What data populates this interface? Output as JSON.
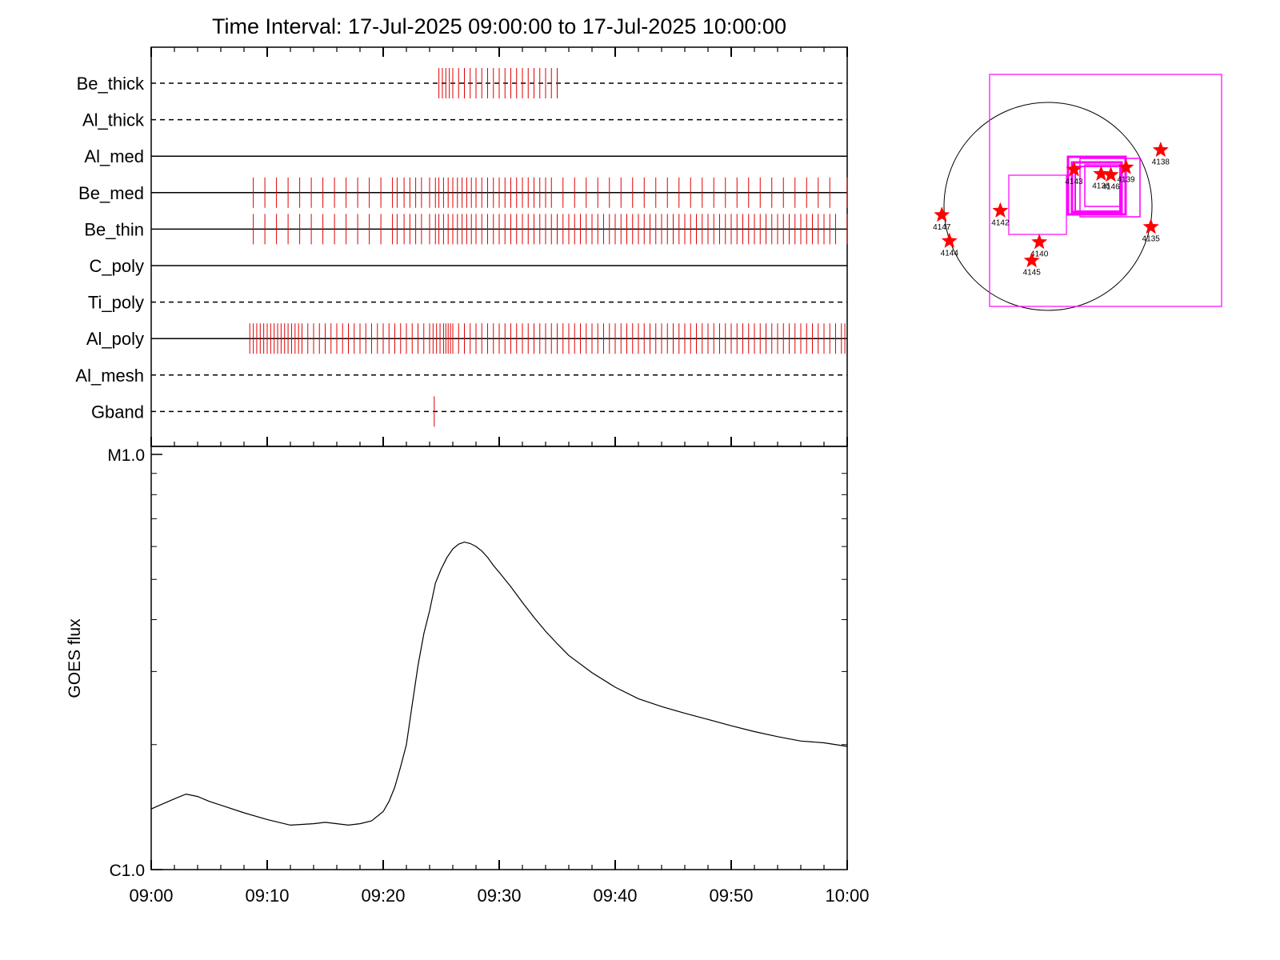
{
  "title": "Time Interval: 17-Jul-2025 09:00:00 to 17-Jul-2025 10:00:00",
  "colors": {
    "axis": "#000000",
    "exposure_tick": "#e00000",
    "region_box": "#ff00ff",
    "sun_limb": "#000000",
    "star": "#ff0000",
    "curve": "#000000"
  },
  "chart_data": [
    {
      "type": "timeline",
      "name": "filter-exposures",
      "x_range": [
        "09:00",
        "10:00"
      ],
      "x_unit": "minutes after 09:00",
      "rows": [
        {
          "label": "Be_thick",
          "line": "dashed",
          "exposures": [
            24.8,
            25.1,
            25.4,
            25.7,
            26.0,
            26.5,
            27.0,
            27.5,
            28.0,
            28.5,
            29.0,
            29.5,
            30.0,
            30.5,
            31.0,
            31.5,
            32.0,
            32.5,
            33.0,
            33.5,
            34.0,
            34.5,
            35.0
          ]
        },
        {
          "label": "Al_thick",
          "line": "dashed",
          "exposures": []
        },
        {
          "label": "Al_med",
          "line": "solid",
          "exposures": []
        },
        {
          "label": "Be_med",
          "line": "solid",
          "exposures": [
            8.8,
            9.8,
            10.8,
            11.8,
            12.8,
            13.8,
            14.8,
            15.8,
            16.8,
            17.8,
            18.8,
            19.8,
            20.8,
            21.2,
            21.8,
            22.3,
            22.8,
            23.3,
            24.0,
            24.5,
            24.8,
            25.2,
            25.6,
            26.0,
            26.4,
            26.8,
            27.2,
            27.6,
            28.0,
            28.5,
            29.0,
            29.5,
            30.0,
            30.5,
            31.0,
            31.5,
            32.0,
            32.5,
            33.0,
            33.5,
            34.0,
            34.5,
            35.5,
            36.5,
            37.5,
            38.5,
            39.5,
            40.5,
            41.5,
            42.5,
            43.5,
            44.5,
            45.5,
            46.5,
            47.5,
            48.5,
            49.5,
            50.5,
            51.5,
            52.5,
            53.5,
            54.5,
            55.5,
            56.5,
            57.5,
            58.5,
            60.0
          ]
        },
        {
          "label": "Be_thin",
          "line": "solid",
          "exposures": [
            8.8,
            9.8,
            10.8,
            11.8,
            12.8,
            13.8,
            14.8,
            15.8,
            16.8,
            17.8,
            18.8,
            19.8,
            20.8,
            21.2,
            21.8,
            22.3,
            22.8,
            23.3,
            24.0,
            24.5,
            24.8,
            25.2,
            25.6,
            26.0,
            26.4,
            26.8,
            27.2,
            27.6,
            28.0,
            28.5,
            29.0,
            29.5,
            30.0,
            30.5,
            31.0,
            31.5,
            32.0,
            32.5,
            33.0,
            33.5,
            34.0,
            34.5,
            35.0,
            35.5,
            36.0,
            36.5,
            37.0,
            37.5,
            38.0,
            38.5,
            39.0,
            39.5,
            40.0,
            40.5,
            41.0,
            41.5,
            42.0,
            42.5,
            43.0,
            43.5,
            44.0,
            44.5,
            45.0,
            45.5,
            46.0,
            46.5,
            47.0,
            47.5,
            48.0,
            48.5,
            49.0,
            49.5,
            50.0,
            50.5,
            51.0,
            51.5,
            52.0,
            52.5,
            53.0,
            53.5,
            54.0,
            54.5,
            55.0,
            55.5,
            56.0,
            56.5,
            57.0,
            57.5,
            58.0,
            58.5,
            59.0,
            60.0
          ]
        },
        {
          "label": "C_poly",
          "line": "solid",
          "exposures": []
        },
        {
          "label": "Ti_poly",
          "line": "dashed",
          "exposures": []
        },
        {
          "label": "Al_poly",
          "line": "solid",
          "exposures": [
            8.5,
            8.8,
            9.1,
            9.4,
            9.7,
            10.0,
            10.3,
            10.6,
            10.9,
            11.2,
            11.5,
            11.8,
            12.1,
            12.4,
            12.7,
            13.0,
            13.5,
            14.0,
            14.5,
            15.0,
            15.5,
            16.0,
            16.5,
            17.0,
            17.5,
            18.0,
            18.5,
            19.0,
            19.5,
            20.0,
            20.5,
            21.0,
            21.5,
            22.0,
            22.5,
            23.0,
            23.5,
            24.0,
            24.3,
            24.6,
            24.9,
            25.2,
            25.4,
            25.6,
            25.8,
            26.0,
            26.5,
            27.0,
            27.5,
            28.0,
            28.5,
            29.0,
            29.5,
            30.0,
            30.5,
            31.0,
            31.5,
            32.0,
            32.5,
            33.0,
            33.5,
            34.0,
            34.5,
            35.0,
            35.5,
            36.0,
            36.5,
            37.0,
            37.5,
            38.0,
            38.5,
            39.0,
            39.5,
            40.0,
            40.5,
            41.0,
            41.5,
            42.0,
            42.5,
            43.0,
            43.5,
            44.0,
            44.5,
            45.0,
            45.5,
            46.0,
            46.5,
            47.0,
            47.5,
            48.0,
            48.5,
            49.0,
            49.5,
            50.0,
            50.5,
            51.0,
            51.5,
            52.0,
            52.5,
            53.0,
            53.5,
            54.0,
            54.5,
            55.0,
            55.5,
            56.0,
            56.5,
            57.0,
            57.5,
            58.0,
            58.5,
            59.0,
            59.5,
            59.8
          ]
        },
        {
          "label": "Al_mesh",
          "line": "dashed",
          "exposures": []
        },
        {
          "label": "Gband",
          "line": "dashed",
          "exposures": [
            24.4
          ]
        }
      ]
    },
    {
      "type": "line",
      "name": "goes-flux",
      "title": "",
      "xlabel": "",
      "ylabel": "GOES flux",
      "ylog": true,
      "ylim": [
        1e-06,
        1e-05
      ],
      "y_tick_labels": [
        {
          "value": 1e-05,
          "label": "M1.0"
        },
        {
          "value": 1e-06,
          "label": "C1.0"
        }
      ],
      "x_ticks": [
        0,
        10,
        20,
        30,
        40,
        50,
        60
      ],
      "x_tick_labels": [
        "09:00",
        "09:10",
        "09:20",
        "09:30",
        "09:40",
        "09:50",
        "10:00"
      ],
      "series": [
        {
          "x": [
            0,
            1,
            2,
            3,
            4,
            5,
            6,
            8,
            10,
            12,
            14,
            15,
            16,
            17,
            18,
            19,
            20,
            20.5,
            21,
            21.5,
            22,
            22.5,
            23,
            23.5,
            24,
            24.5,
            25,
            25.5,
            26,
            26.5,
            27,
            27.5,
            28,
            28.5,
            29,
            29.5,
            30,
            31,
            32,
            33,
            34,
            35,
            36,
            38,
            40,
            42,
            44,
            46,
            48,
            50,
            52,
            54,
            56,
            58,
            60
          ],
          "y": [
            1.4e-06,
            1.44e-06,
            1.48e-06,
            1.52e-06,
            1.5e-06,
            1.46e-06,
            1.43e-06,
            1.37e-06,
            1.32e-06,
            1.28e-06,
            1.29e-06,
            1.3e-06,
            1.29e-06,
            1.28e-06,
            1.29e-06,
            1.31e-06,
            1.38e-06,
            1.46e-06,
            1.58e-06,
            1.77e-06,
            2e-06,
            2.5e-06,
            3.1e-06,
            3.7e-06,
            4.2e-06,
            4.9e-06,
            5.3e-06,
            5.65e-06,
            5.92e-06,
            6.08e-06,
            6.15e-06,
            6.1e-06,
            6e-06,
            5.85e-06,
            5.65e-06,
            5.4e-06,
            5.2e-06,
            4.8e-06,
            4.4e-06,
            4.05e-06,
            3.75e-06,
            3.5e-06,
            3.28e-06,
            2.98e-06,
            2.75e-06,
            2.58e-06,
            2.47e-06,
            2.38e-06,
            2.3e-06,
            2.22e-06,
            2.15e-06,
            2.09e-06,
            2.04e-06,
            2.02e-06,
            1.98e-06
          ]
        }
      ]
    },
    {
      "type": "scatter",
      "name": "sun-context-map",
      "points": [
        {
          "label": "4147",
          "x": -980,
          "y": -80
        },
        {
          "label": "4144",
          "x": -910,
          "y": -320
        },
        {
          "label": "4142",
          "x": -440,
          "y": -40
        },
        {
          "label": "4140",
          "x": -80,
          "y": -330
        },
        {
          "label": "4145",
          "x": -150,
          "y": -500
        },
        {
          "label": "4143",
          "x": 240,
          "y": 340
        },
        {
          "label": "4136",
          "x": 490,
          "y": 300
        },
        {
          "label": "4146",
          "x": 580,
          "y": 290
        },
        {
          "label": "4139",
          "x": 720,
          "y": 360
        },
        {
          "label": "4138",
          "x": 1040,
          "y": 520
        },
        {
          "label": "4135",
          "x": 950,
          "y": -190
        }
      ]
    }
  ]
}
